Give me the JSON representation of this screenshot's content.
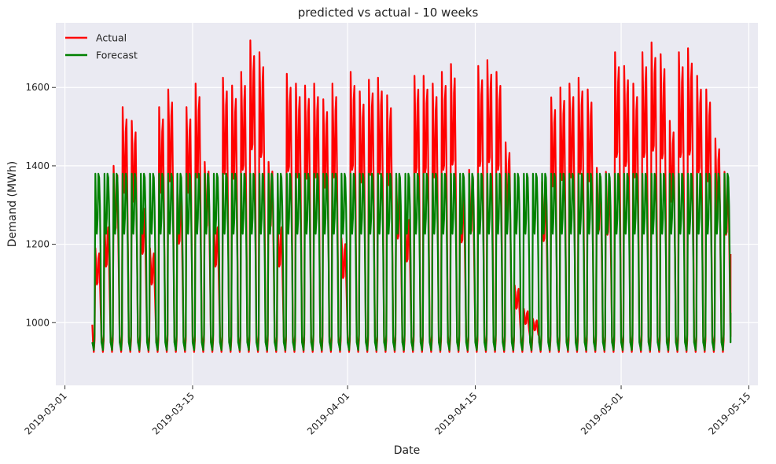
{
  "chart_data": {
    "type": "line",
    "title": "predicted vs actual - 10 weeks",
    "xlabel": "Date",
    "ylabel": "Demand (MWh)",
    "x_start": "2019-03-04T00:00",
    "x_end": "2019-05-13T00:00",
    "x_step": "2h",
    "xlim": [
      "2019-02-29T00:00",
      "2019-05-16T00:00"
    ],
    "ylim": [
      840,
      1765
    ],
    "x_ticks": [
      "2019-03-01",
      "2019-03-15",
      "2019-04-01",
      "2019-04-15",
      "2019-05-01",
      "2019-05-15"
    ],
    "y_ticks": [
      1000,
      1200,
      1400,
      1600
    ],
    "grid": true,
    "legend_position": "top-left",
    "background": "#eaeaf2",
    "colors": {
      "Actual": "#ff0000",
      "Forecast": "#008000"
    },
    "daily_peak_mwh_actual": [
      1190,
      1260,
      1400,
      1550,
      1515,
      1310,
      1190,
      1550,
      1595,
      1350,
      1550,
      1610,
      1410,
      1260,
      1625,
      1605,
      1640,
      1720,
      1690,
      1410,
      1260,
      1635,
      1610,
      1605,
      1610,
      1570,
      1610,
      1215,
      1640,
      1590,
      1620,
      1625,
      1580,
      1370,
      1280,
      1630,
      1630,
      1610,
      1640,
      1660,
      1355,
      1390,
      1655,
      1670,
      1640,
      1460,
      1095,
      1035,
      1010,
      1360,
      1575,
      1600,
      1610,
      1625,
      1595,
      1395,
      1385,
      1690,
      1655,
      1610,
      1690,
      1715,
      1685,
      1515,
      1690,
      1700,
      1630,
      1595,
      1470,
      1385
    ],
    "series": [
      {
        "name": "Actual",
        "daily_low_mwh": 925,
        "start_value": 995,
        "end_value": 1175
      },
      {
        "name": "Forecast",
        "daily_low_mwh": 930,
        "daily_peak_mwh": 1380,
        "shoulder_mwh": 1260,
        "mid_plateau_mwh": 1210,
        "end_value": 1025
      }
    ]
  }
}
